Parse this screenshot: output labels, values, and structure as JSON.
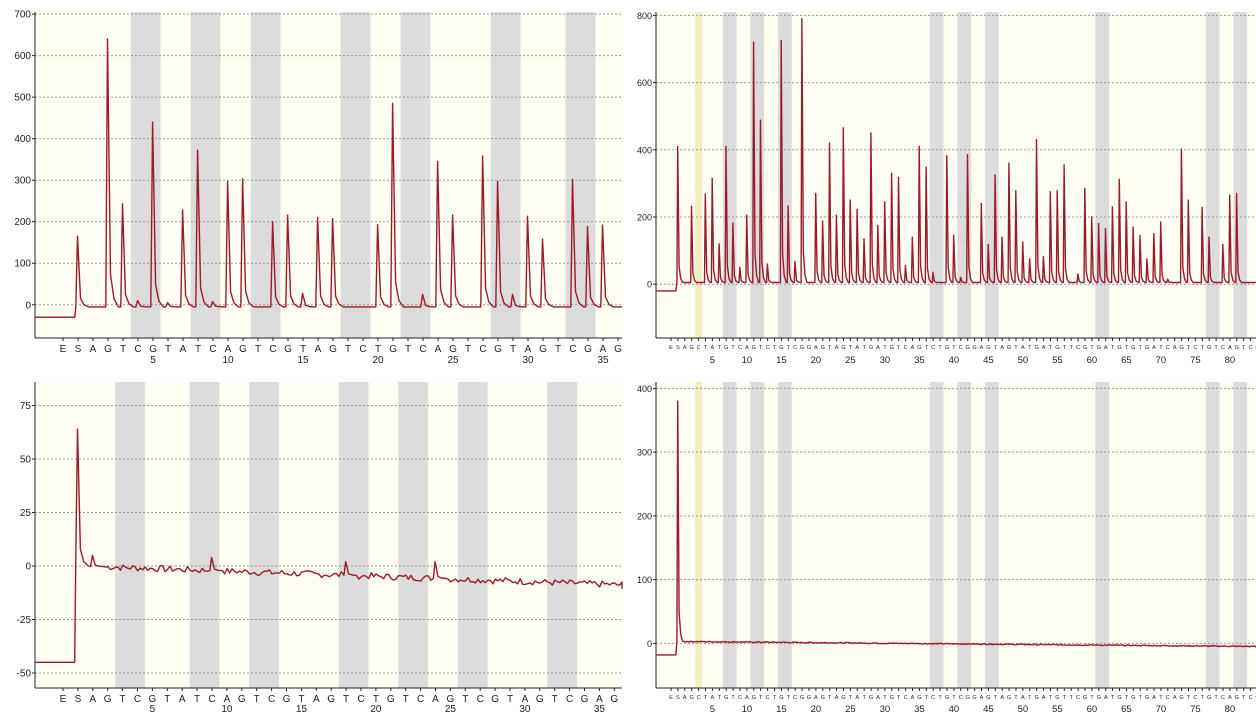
{
  "colors": {
    "plot_bg": "#fffef2",
    "shade": "#dcdcdc",
    "highlight": "#f2eec2",
    "trace": "#9b1b2a",
    "grid": "#9a9a9a"
  },
  "chart_data": [
    {
      "id": "top-left",
      "type": "line",
      "title": "",
      "xlabel": "",
      "ylabel": "",
      "grid": true,
      "ylim": [
        -80,
        705
      ],
      "yticks": [
        0,
        100,
        200,
        300,
        400,
        500,
        600,
        700
      ],
      "ytick_labels": [
        "0",
        "100",
        "200",
        "300",
        "400",
        "500",
        "600",
        "700"
      ],
      "flows": [
        "E",
        "S",
        "A",
        "G",
        "T",
        "C",
        "G",
        "T",
        "A",
        "T",
        "C",
        "A",
        "G",
        "T",
        "C",
        "G",
        "T",
        "A",
        "G",
        "T",
        "C",
        "T",
        "G",
        "T",
        "C",
        "A",
        "G",
        "T",
        "C",
        "G",
        "T",
        "A",
        "G",
        "T",
        "C",
        "G",
        "A",
        "G"
      ],
      "flow_numbers": [
        "5",
        "10",
        "15",
        "20",
        "25",
        "30",
        "35"
      ],
      "shaded_flows": [
        5,
        9,
        13,
        19,
        23,
        29,
        34
      ],
      "highlight_flows": [],
      "baseline_pre": -30,
      "baseline_post": -5,
      "step_flow": 1,
      "peaks": [
        {
          "flow": 1,
          "value": 165
        },
        {
          "flow": 3,
          "value": 640
        },
        {
          "flow": 4,
          "value": 243
        },
        {
          "flow": 5,
          "value": 10
        },
        {
          "flow": 6,
          "value": 440
        },
        {
          "flow": 7,
          "value": 5
        },
        {
          "flow": 8,
          "value": 228
        },
        {
          "flow": 9,
          "value": 372
        },
        {
          "flow": 10,
          "value": 8
        },
        {
          "flow": 11,
          "value": 297
        },
        {
          "flow": 12,
          "value": 303
        },
        {
          "flow": 14,
          "value": 200
        },
        {
          "flow": 15,
          "value": 216
        },
        {
          "flow": 16,
          "value": 27
        },
        {
          "flow": 17,
          "value": 210
        },
        {
          "flow": 18,
          "value": 207
        },
        {
          "flow": 21,
          "value": 193
        },
        {
          "flow": 22,
          "value": 485
        },
        {
          "flow": 24,
          "value": 25
        },
        {
          "flow": 25,
          "value": 345
        },
        {
          "flow": 26,
          "value": 216
        },
        {
          "flow": 28,
          "value": 358
        },
        {
          "flow": 29,
          "value": 297
        },
        {
          "flow": 30,
          "value": 25
        },
        {
          "flow": 31,
          "value": 213
        },
        {
          "flow": 32,
          "value": 158
        },
        {
          "flow": 34,
          "value": 302
        },
        {
          "flow": 35,
          "value": 188
        },
        {
          "flow": 36,
          "value": 192
        }
      ],
      "noise": 0
    },
    {
      "id": "top-right",
      "type": "line",
      "title": "",
      "xlabel": "",
      "ylabel": "",
      "grid": true,
      "ylim": [
        -160,
        810
      ],
      "yticks": [
        0,
        200,
        400,
        600,
        800
      ],
      "ytick_labels": [
        "0",
        "200",
        "400",
        "600",
        "800"
      ],
      "flows": [
        "E",
        "S",
        "A",
        "G",
        "C",
        "T",
        "A",
        "T",
        "G",
        "T",
        "C",
        "A",
        "G",
        "T",
        "C",
        "T",
        "G",
        "T",
        "C",
        "G",
        "G",
        "A",
        "G",
        "T",
        "A",
        "G",
        "T",
        "A",
        "T",
        "G",
        "A",
        "T",
        "G",
        "T",
        "C",
        "A",
        "G",
        "T",
        "C",
        "T",
        "G",
        "T",
        "C",
        "G",
        "G",
        "A",
        "G",
        "T",
        "A",
        "G",
        "T",
        "A",
        "T",
        "G",
        "A",
        "T",
        "G",
        "T",
        "T",
        "C",
        "G",
        "T",
        "G",
        "A",
        "T",
        "G",
        "T",
        "G",
        "T",
        "G",
        "A",
        "T",
        "C",
        "A",
        "G",
        "T",
        "C",
        "T",
        "G",
        "T",
        "C",
        "A",
        "G",
        "T",
        "C",
        "G"
      ],
      "flow_numbers": [
        "5",
        "10",
        "15",
        "20",
        "25",
        "30",
        "35",
        "40",
        "45",
        "50",
        "55",
        "60",
        "65",
        "70",
        "75",
        "80"
      ],
      "shaded_flows": [
        8,
        12,
        16,
        38,
        42,
        46,
        62,
        78,
        82,
        86
      ],
      "highlight_flows": [
        4
      ],
      "baseline_pre": -20,
      "baseline_post": 5,
      "step_flow": 1,
      "peaks": [
        {
          "flow": 1,
          "value": 410
        },
        {
          "flow": 3,
          "value": 232
        },
        {
          "flow": 5,
          "value": 268
        },
        {
          "flow": 6,
          "value": 315
        },
        {
          "flow": 7,
          "value": 120
        },
        {
          "flow": 8,
          "value": 410
        },
        {
          "flow": 9,
          "value": 182
        },
        {
          "flow": 10,
          "value": 50
        },
        {
          "flow": 11,
          "value": 205
        },
        {
          "flow": 12,
          "value": 720
        },
        {
          "flow": 13,
          "value": 488
        },
        {
          "flow": 14,
          "value": 60
        },
        {
          "flow": 16,
          "value": 725
        },
        {
          "flow": 17,
          "value": 233
        },
        {
          "flow": 18,
          "value": 68
        },
        {
          "flow": 19,
          "value": 790
        },
        {
          "flow": 21,
          "value": 270
        },
        {
          "flow": 22,
          "value": 188
        },
        {
          "flow": 23,
          "value": 420
        },
        {
          "flow": 24,
          "value": 205
        },
        {
          "flow": 25,
          "value": 465
        },
        {
          "flow": 26,
          "value": 250
        },
        {
          "flow": 27,
          "value": 223
        },
        {
          "flow": 28,
          "value": 135
        },
        {
          "flow": 29,
          "value": 450
        },
        {
          "flow": 30,
          "value": 175
        },
        {
          "flow": 31,
          "value": 245
        },
        {
          "flow": 32,
          "value": 330
        },
        {
          "flow": 33,
          "value": 318
        },
        {
          "flow": 34,
          "value": 55
        },
        {
          "flow": 35,
          "value": 140
        },
        {
          "flow": 36,
          "value": 410
        },
        {
          "flow": 37,
          "value": 348
        },
        {
          "flow": 38,
          "value": 35
        },
        {
          "flow": 40,
          "value": 382
        },
        {
          "flow": 41,
          "value": 145
        },
        {
          "flow": 42,
          "value": 20
        },
        {
          "flow": 43,
          "value": 385
        },
        {
          "flow": 45,
          "value": 240
        },
        {
          "flow": 46,
          "value": 118
        },
        {
          "flow": 47,
          "value": 325
        },
        {
          "flow": 48,
          "value": 140
        },
        {
          "flow": 49,
          "value": 360
        },
        {
          "flow": 50,
          "value": 278
        },
        {
          "flow": 51,
          "value": 125
        },
        {
          "flow": 52,
          "value": 75
        },
        {
          "flow": 53,
          "value": 430
        },
        {
          "flow": 54,
          "value": 82
        },
        {
          "flow": 55,
          "value": 275
        },
        {
          "flow": 56,
          "value": 278
        },
        {
          "flow": 57,
          "value": 355
        },
        {
          "flow": 59,
          "value": 30
        },
        {
          "flow": 60,
          "value": 285
        },
        {
          "flow": 61,
          "value": 200
        },
        {
          "flow": 62,
          "value": 180
        },
        {
          "flow": 63,
          "value": 165
        },
        {
          "flow": 64,
          "value": 230
        },
        {
          "flow": 65,
          "value": 312
        },
        {
          "flow": 66,
          "value": 245
        },
        {
          "flow": 67,
          "value": 170
        },
        {
          "flow": 68,
          "value": 145
        },
        {
          "flow": 69,
          "value": 75
        },
        {
          "flow": 70,
          "value": 150
        },
        {
          "flow": 71,
          "value": 185
        },
        {
          "flow": 72,
          "value": 15
        },
        {
          "flow": 74,
          "value": 402
        },
        {
          "flow": 75,
          "value": 250
        },
        {
          "flow": 77,
          "value": 228
        },
        {
          "flow": 78,
          "value": 140
        },
        {
          "flow": 80,
          "value": 118
        },
        {
          "flow": 81,
          "value": 265
        },
        {
          "flow": 82,
          "value": 270
        }
      ],
      "noise": 0
    },
    {
      "id": "bottom-left",
      "type": "line",
      "title": "",
      "xlabel": "",
      "ylabel": "",
      "grid": true,
      "ylim": [
        -57,
        86
      ],
      "yticks": [
        -50,
        -25,
        0,
        25,
        50,
        75
      ],
      "ytick_labels": [
        "-50",
        "-25",
        "0",
        "25",
        "50",
        "75"
      ],
      "flows": [
        "E",
        "S",
        "A",
        "G",
        "T",
        "C",
        "G",
        "T",
        "A",
        "T",
        "C",
        "A",
        "G",
        "T",
        "C",
        "G",
        "T",
        "A",
        "G",
        "T",
        "C",
        "T",
        "G",
        "T",
        "C",
        "A",
        "G",
        "T",
        "C",
        "G",
        "T",
        "A",
        "G",
        "T",
        "C",
        "G",
        "A",
        "G"
      ],
      "flow_numbers": [
        "5",
        "10",
        "15",
        "20",
        "25",
        "30",
        "35"
      ],
      "shaded_flows": [
        4,
        9,
        13,
        19,
        23,
        27,
        33
      ],
      "highlight_flows": [],
      "baseline_pre": -45,
      "baseline_post": 0,
      "baseline_end": -9,
      "step_flow": 1,
      "peaks": [
        {
          "flow": 1,
          "value": 64
        },
        {
          "flow": 2,
          "value": 5
        },
        {
          "flow": 10,
          "value": 4
        },
        {
          "flow": 19,
          "value": 2
        },
        {
          "flow": 25,
          "value": 2
        }
      ],
      "noise": 1.5
    },
    {
      "id": "bottom-right",
      "type": "line",
      "title": "",
      "xlabel": "",
      "ylabel": "",
      "grid": true,
      "ylim": [
        -70,
        410
      ],
      "yticks": [
        0,
        100,
        200,
        300,
        400
      ],
      "ytick_labels": [
        "0",
        "100",
        "200",
        "300",
        "400"
      ],
      "flows": [
        "E",
        "S",
        "A",
        "G",
        "C",
        "T",
        "A",
        "T",
        "G",
        "T",
        "C",
        "A",
        "G",
        "T",
        "C",
        "T",
        "G",
        "T",
        "C",
        "G",
        "G",
        "A",
        "G",
        "T",
        "A",
        "G",
        "T",
        "A",
        "T",
        "G",
        "A",
        "T",
        "G",
        "T",
        "C",
        "A",
        "G",
        "T",
        "C",
        "T",
        "G",
        "T",
        "C",
        "G",
        "G",
        "A",
        "G",
        "T",
        "A",
        "G",
        "T",
        "A",
        "T",
        "G",
        "A",
        "T",
        "G",
        "T",
        "T",
        "C",
        "G",
        "T",
        "G",
        "A",
        "T",
        "G",
        "T",
        "G",
        "T",
        "G",
        "A",
        "T",
        "C",
        "A",
        "G",
        "T",
        "C",
        "T",
        "G",
        "T",
        "C",
        "A",
        "G",
        "T",
        "C",
        "G"
      ],
      "flow_numbers": [
        "5",
        "10",
        "15",
        "20",
        "25",
        "30",
        "35",
        "40",
        "45",
        "50",
        "55",
        "60",
        "65",
        "70",
        "75",
        "80"
      ],
      "shaded_flows": [
        8,
        12,
        16,
        38,
        42,
        46,
        62,
        78,
        82,
        86
      ],
      "highlight_flows": [
        4
      ],
      "baseline_pre": -18,
      "baseline_post": 3,
      "baseline_end": -5,
      "step_flow": 1,
      "peaks": [
        {
          "flow": 1,
          "value": 380
        }
      ],
      "noise": 0.8
    }
  ]
}
